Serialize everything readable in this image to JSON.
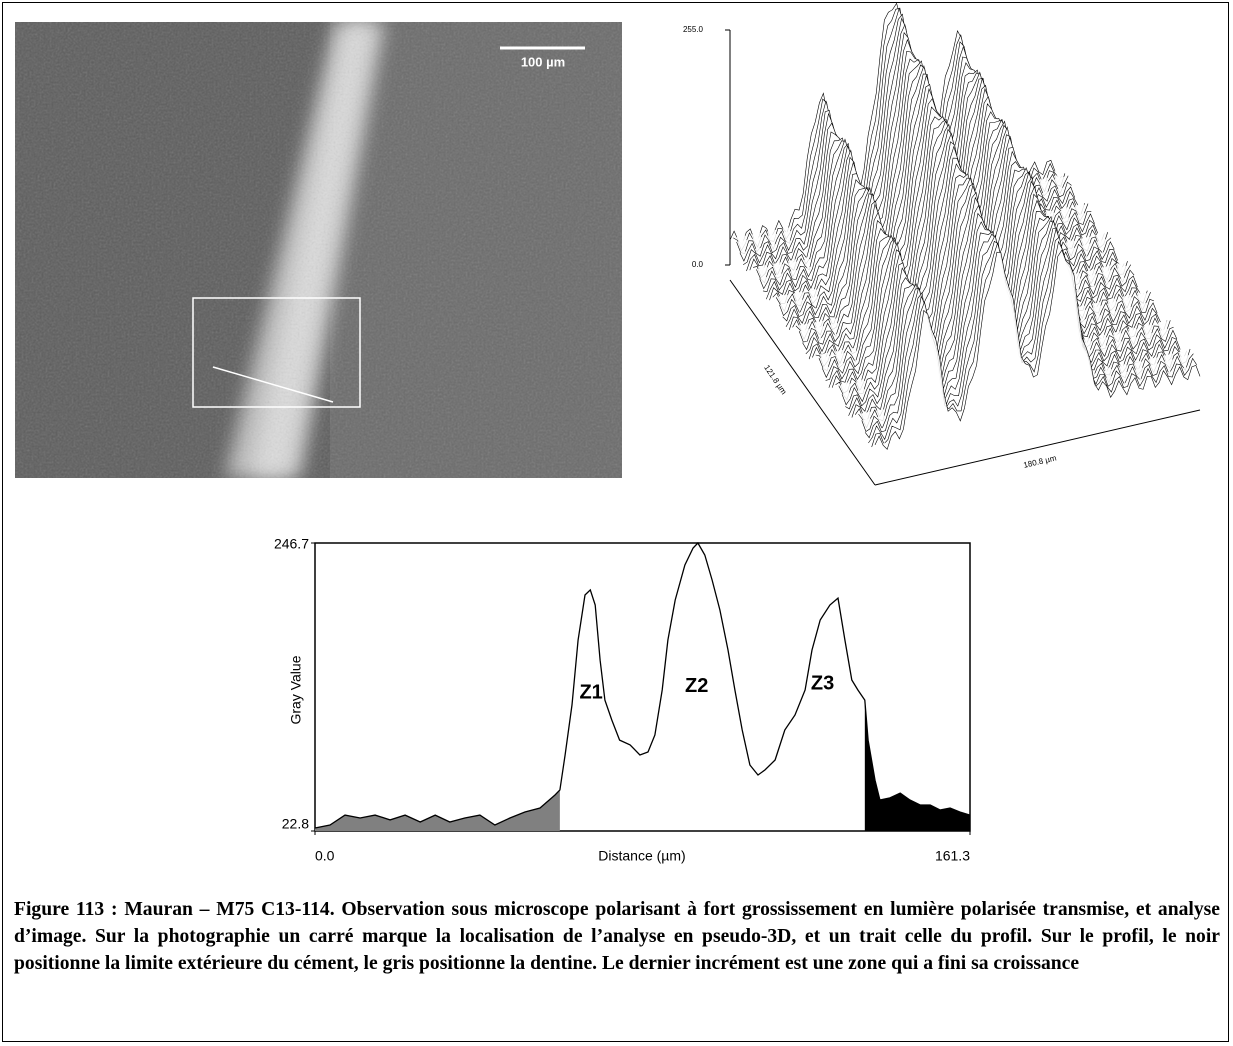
{
  "photo": {
    "scale_label": "100 µm"
  },
  "surface": {
    "z_max_label": "255.0",
    "z_min_label": "0.0",
    "depth_label": "121.8 µm",
    "width_label": "180.8 µm"
  },
  "chart_data": {
    "type": "line",
    "x_label": "Distance (µm)",
    "y_label": "Gray Value",
    "color": "#000000",
    "xlim": [
      0,
      161.3
    ],
    "ylim": [
      22.8,
      246.7
    ],
    "xticks": [
      {
        "value": 0,
        "label": "0.0"
      },
      161.3
    ],
    "yticks": [
      22.8,
      246.7
    ],
    "x": [
      0.0,
      3.7,
      7.4,
      11.1,
      14.8,
      18.5,
      22.2,
      25.9,
      29.6,
      33.2,
      36.9,
      40.6,
      44.3,
      48.0,
      51.7,
      55.4,
      59.1,
      60.3,
      61.6,
      63.3,
      64.8,
      66.5,
      67.8,
      69.0,
      70.2,
      71.4,
      73.1,
      75.0,
      77.6,
      80.0,
      82.0,
      83.7,
      85.5,
      86.9,
      88.7,
      91.1,
      93.1,
      94.3,
      96.0,
      97.8,
      99.7,
      101.7,
      103.4,
      105.2,
      107.1,
      109.1,
      110.8,
      113.3,
      115.7,
      118.2,
      120.7,
      122.4,
      124.4,
      126.8,
      128.8,
      130.5,
      132.2,
      133.7,
      135.4,
      136.2,
      137.9,
      139.1,
      141.6,
      144.1,
      146.5,
      149.0,
      151.5,
      153.9,
      156.4,
      158.8,
      161.3
    ],
    "values": [
      25.1,
      27.5,
      35.2,
      32.9,
      35.2,
      31.4,
      35.2,
      29.8,
      35.2,
      29.8,
      32.9,
      35.2,
      27.5,
      32.9,
      37.6,
      40.7,
      50.8,
      54.7,
      81.9,
      120.8,
      171.3,
      206.3,
      210.2,
      198.5,
      155.7,
      124.6,
      109.1,
      93.5,
      89.7,
      81.9,
      84.2,
      97.4,
      132.4,
      171.3,
      202.4,
      229.6,
      242.8,
      246.7,
      237.4,
      217.9,
      194.6,
      163.5,
      132.4,
      101.3,
      74.1,
      66.3,
      70.2,
      78.0,
      101.3,
      113.0,
      132.4,
      163.5,
      186.8,
      198.5,
      203.9,
      171.3,
      140.2,
      132.4,
      124.6,
      93.5,
      62.4,
      46.9,
      48.5,
      52.3,
      46.9,
      43.0,
      43.0,
      39.1,
      40.7,
      37.6,
      35.2
    ],
    "shaded_ranges": [
      {
        "color": "#808080",
        "x": [
          0,
          60.3
        ]
      },
      {
        "color": "#000000",
        "x": [
          135.4,
          161.3
        ]
      }
    ],
    "annotations": [
      {
        "text": "Z1",
        "x": 68,
        "y": 130
      },
      {
        "text": "Z2",
        "x": 94,
        "y": 135
      },
      {
        "text": "Z3",
        "x": 125,
        "y": 137
      }
    ]
  },
  "caption": "Figure 113 : Mauran – M75 C13-114. Observation sous microscope polarisant à fort grossissement en lumière polarisée transmise, et analyse d’image. Sur la photographie un carré marque la localisation de l’analyse en pseudo-3D, et un trait celle du profil. Sur le profil, le noir positionne la limite extérieure du cément, le gris positionne la dentine. Le dernier incrément est une zone qui a fini sa croissance"
}
